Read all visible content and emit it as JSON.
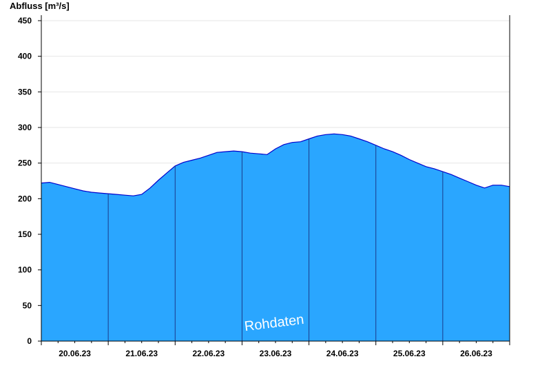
{
  "chart_data": {
    "type": "area",
    "ylabel": "Abfluss [m³/s]",
    "ylim": [
      0,
      460
    ],
    "yticks": [
      0,
      50,
      100,
      150,
      200,
      250,
      300,
      350,
      400,
      450
    ],
    "x_start": "20.06.23 00:00",
    "x_end": "27.06.23 00:00",
    "xticks": [
      "20.06.23",
      "21.06.23",
      "22.06.23",
      "23.06.23",
      "24.06.23",
      "25.06.23",
      "26.06.23"
    ],
    "x_unit": "hours since 20.06.23 00:00",
    "grid": true,
    "watermark": "Rohdaten",
    "colors": {
      "fill": "#2aa6ff",
      "line": "#0000cc",
      "grid": "#e6e6e6",
      "axis": "#000000"
    },
    "series": [
      {
        "x": [
          0,
          3,
          6,
          9,
          12,
          15,
          18,
          21,
          24,
          27,
          30,
          33,
          36,
          39,
          42,
          45,
          48,
          51,
          54,
          57,
          60,
          63,
          66,
          69,
          72,
          75,
          78,
          81,
          84,
          87,
          90,
          93,
          96,
          99,
          102,
          105,
          108,
          111,
          114,
          117,
          120,
          123,
          126,
          129,
          132,
          135,
          138,
          141,
          144,
          147,
          150,
          153,
          156,
          159,
          162,
          165,
          168
        ],
        "values": [
          222,
          223,
          220,
          217,
          214,
          211,
          209,
          208,
          207,
          206,
          205,
          204,
          206,
          215,
          226,
          236,
          246,
          251,
          254,
          257,
          261,
          265,
          266,
          267,
          266,
          264,
          263,
          262,
          270,
          276,
          279,
          280,
          284,
          288,
          290,
          291,
          290,
          288,
          284,
          280,
          275,
          270,
          266,
          261,
          255,
          250,
          245,
          242,
          238,
          234,
          229,
          224,
          219,
          215,
          219,
          219,
          217
        ]
      }
    ]
  }
}
